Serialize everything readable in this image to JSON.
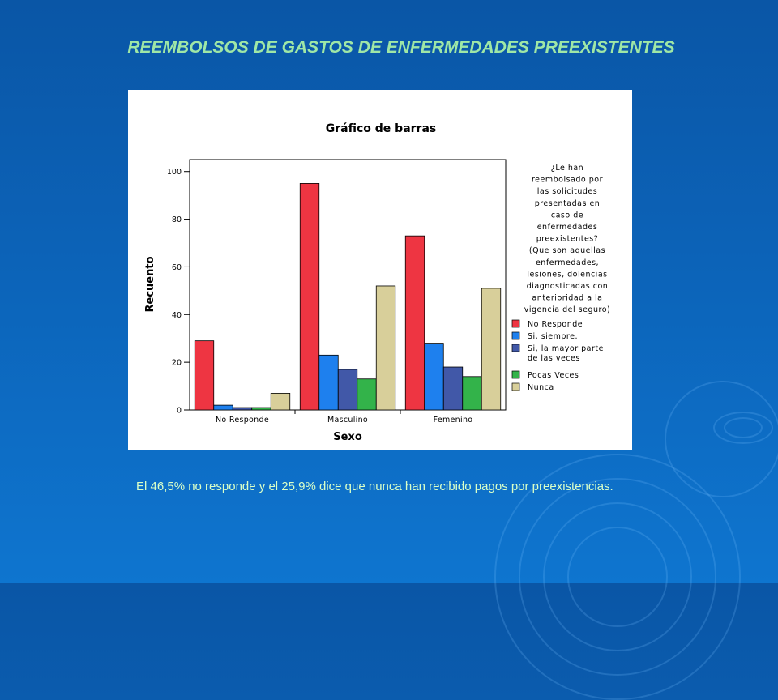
{
  "slide": {
    "title": "REEMBOLSOS DE GASTOS DE ENFERMEDADES PREEXISTENTES",
    "caption": "El 46,5% no responde y el 25,9% dice que nunca han recibido pagos por preexistencias."
  },
  "chart_data": {
    "type": "bar",
    "title": "Gráfico de barras",
    "xlabel": "Sexo",
    "ylabel": "Recuento",
    "ylim": [
      0,
      105
    ],
    "yticks": [
      0,
      20,
      40,
      60,
      80,
      100
    ],
    "grid": false,
    "legend_position": "right",
    "legend_title": [
      "¿Le han",
      "reembolsado por",
      "las solicitudes",
      "presentadas en",
      "caso de",
      "enfermedades",
      "preexistentes?",
      "(Que son aquellas",
      "enfermedades,",
      "lesiones, dolencias",
      "diagnosticadas con",
      "anterioridad a la",
      "vigencia del seguro)"
    ],
    "categories": [
      "No Responde",
      "Masculino",
      "Femenino"
    ],
    "series": [
      {
        "name": "No Responde",
        "label_lines": [
          "No Responde"
        ],
        "color": "#ee3542",
        "values": [
          29,
          95,
          73
        ]
      },
      {
        "name": "Si, siempre.",
        "label_lines": [
          "Si, siempre."
        ],
        "color": "#1e80ee",
        "values": [
          2,
          23,
          28
        ]
      },
      {
        "name": "Si, la mayor parte de las veces",
        "label_lines": [
          "Si, la mayor parte",
          "de las veces"
        ],
        "color": "#4158a8",
        "values": [
          1,
          17,
          18
        ]
      },
      {
        "name": "Pocas Veces",
        "label_lines": [
          "Pocas Veces"
        ],
        "color": "#33b34a",
        "values": [
          1,
          13,
          14
        ]
      },
      {
        "name": "Nunca",
        "label_lines": [
          "Nunca"
        ],
        "color": "#d8cf9a",
        "values": [
          7,
          52,
          51
        ]
      }
    ]
  }
}
